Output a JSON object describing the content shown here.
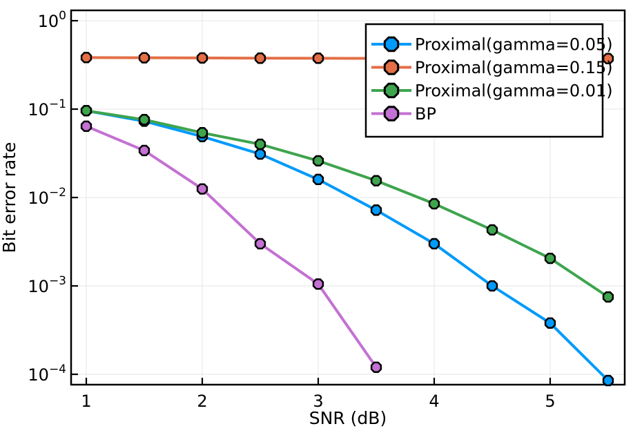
{
  "chart_data": {
    "type": "line",
    "title": "",
    "xlabel": "SNR (dB)",
    "ylabel": "Bit error rate",
    "xscale": "linear",
    "yscale": "log",
    "xlim": [
      0.87,
      5.64
    ],
    "ylim": [
      7.6e-05,
      1.31
    ],
    "grid": true,
    "xticks": {
      "values": [
        1,
        2,
        3,
        4,
        5
      ],
      "labels": [
        "1",
        "2",
        "3",
        "4",
        "5"
      ]
    },
    "yticks": {
      "values": [
        1,
        0.1,
        0.01,
        0.001,
        0.0001
      ],
      "base": "10",
      "exponents": [
        "0",
        "−1",
        "−2",
        "−3",
        "−4"
      ]
    },
    "legend": {
      "position": "top-right",
      "background": "#FFFFFF",
      "border_color": "#000000"
    },
    "series": [
      {
        "name": "Proximal(gamma=0.05)",
        "color": "#009AFA",
        "marker": "octagon",
        "marker_stroke": "#000000",
        "x": [
          1,
          1.5,
          2,
          2.5,
          3,
          3.5,
          4,
          4.5,
          5,
          5.5
        ],
        "y": [
          0.096,
          0.073,
          0.049,
          0.031,
          0.016,
          0.0072,
          0.003,
          0.001,
          0.00038,
          8.5e-05
        ]
      },
      {
        "name": "Proximal(gamma=0.15)",
        "color": "#E36F47",
        "marker": "octagon",
        "marker_stroke": "#000000",
        "x": [
          1,
          1.5,
          2,
          2.5,
          3,
          3.5,
          4,
          4.5,
          5,
          5.5
        ],
        "y": [
          0.383,
          0.381,
          0.379,
          0.377,
          0.376,
          0.375,
          0.374,
          0.374,
          0.373,
          0.373
        ]
      },
      {
        "name": "Proximal(gamma=0.01)",
        "color": "#3EA44E",
        "marker": "octagon",
        "marker_stroke": "#000000",
        "x": [
          1,
          1.5,
          2,
          2.5,
          3,
          3.5,
          4,
          4.5,
          5,
          5.5
        ],
        "y": [
          0.096,
          0.076,
          0.054,
          0.04,
          0.026,
          0.0155,
          0.0085,
          0.0043,
          0.00205,
          0.00075
        ]
      },
      {
        "name": "BP",
        "color": "#C371D2",
        "marker": "octagon",
        "marker_stroke": "#000000",
        "x": [
          1,
          1.5,
          2,
          2.5,
          3,
          3.5
        ],
        "y": [
          0.064,
          0.034,
          0.0125,
          0.003,
          0.00105,
          0.00012
        ]
      }
    ]
  }
}
